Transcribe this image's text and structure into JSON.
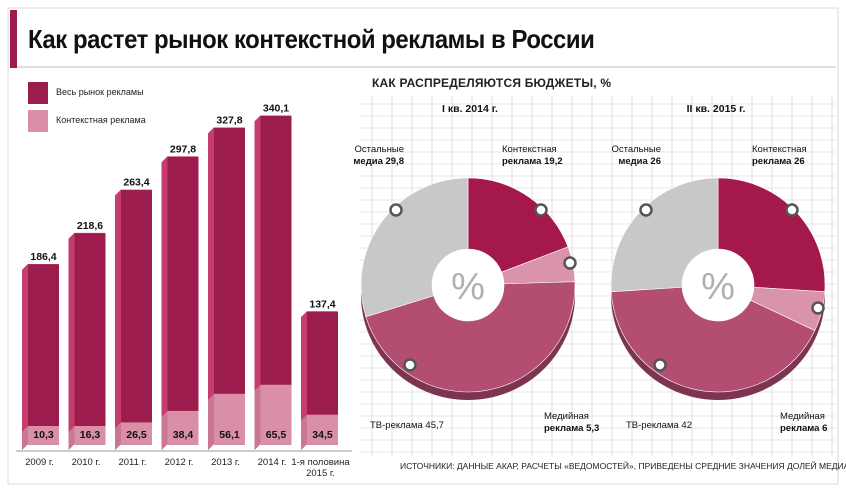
{
  "title": "Как растет рынок контекстной рекламы в России",
  "legend": [
    {
      "label": "Весь рынок рекламы",
      "color": "#9c1c4e"
    },
    {
      "label": "Контекстная реклама",
      "color": "#d98fa6"
    }
  ],
  "pies_title": "КАК РАСПРЕДЕЛЯЮТСЯ БЮДЖЕТЫ, %",
  "source": "ИСТОЧНИКИ: ДАННЫЕ АКАР, РАСЧЕТЫ «ВЕДОМОСТЕЙ», ПРИВЕДЕНЫ СРЕДНИЕ ЗНАЧЕНИЯ ДОЛЕЙ МЕДИА",
  "colors": {
    "total": "#9c1c4e",
    "total_side": "#c43d6c",
    "context": "#d98fa6",
    "context_side": "#c97792",
    "context_slice": "#a4184c",
    "media_slice": "#d993aa",
    "tv_slice": "#b44d72",
    "other_slice": "#c8c8c8",
    "grid": "#cfcfcf"
  },
  "chart_data": [
    {
      "type": "bar",
      "categories": [
        "2009 г.",
        "2010 г.",
        "2011 г.",
        "2012 г.",
        "2013 г.",
        "2014 г.",
        "1-я половина 2015 г."
      ],
      "series": [
        {
          "name": "Весь рынок рекламы",
          "values": [
            186.4,
            218.6,
            263.4,
            297.8,
            327.8,
            340.1,
            137.4
          ],
          "labels": [
            "186,4",
            "218,6",
            "263,4",
            "297,8",
            "327,8",
            "340,1",
            "137,4"
          ]
        },
        {
          "name": "Контекстная реклама",
          "values": [
            10.3,
            16.3,
            26.5,
            38.4,
            56.1,
            65.5,
            34.5
          ],
          "labels": [
            "10,3",
            "16,3",
            "26,5",
            "38,4",
            "56,1",
            "65,5",
            "34,5"
          ]
        }
      ],
      "ylim": [
        0,
        350
      ]
    },
    {
      "type": "pie",
      "title": "I кв. 2014 г.",
      "center_label": "%",
      "slices": [
        {
          "label": "Контекстная реклама 19,2",
          "value": 19.2,
          "line1": "Контекстная",
          "line2": "реклама 19,2"
        },
        {
          "label": "Медийная реклама 5,3",
          "value": 5.3,
          "line1": "Медийная",
          "line2": "реклама 5,3"
        },
        {
          "label": "ТВ-реклама 45,7",
          "value": 45.7,
          "line1": "ТВ-реклама 45,7",
          "line2": ""
        },
        {
          "label": "Остальные медиа 29,8",
          "value": 29.8,
          "line1": "Остальные",
          "line2": "медиа 29,8"
        }
      ]
    },
    {
      "type": "pie",
      "title": "II кв. 2015 г.",
      "center_label": "%",
      "slices": [
        {
          "label": "Контекстная реклама 26",
          "value": 26,
          "line1": "Контекстная",
          "line2": "реклама 26"
        },
        {
          "label": "Медийная реклама 6",
          "value": 6,
          "line1": "Медийная",
          "line2": "реклама 6"
        },
        {
          "label": "ТВ-реклама 42",
          "value": 42,
          "line1": "ТВ-реклама 42",
          "line2": ""
        },
        {
          "label": "Остальные медиа 26",
          "value": 26,
          "line1": "Остальные",
          "line2": "медиа 26"
        }
      ]
    }
  ]
}
